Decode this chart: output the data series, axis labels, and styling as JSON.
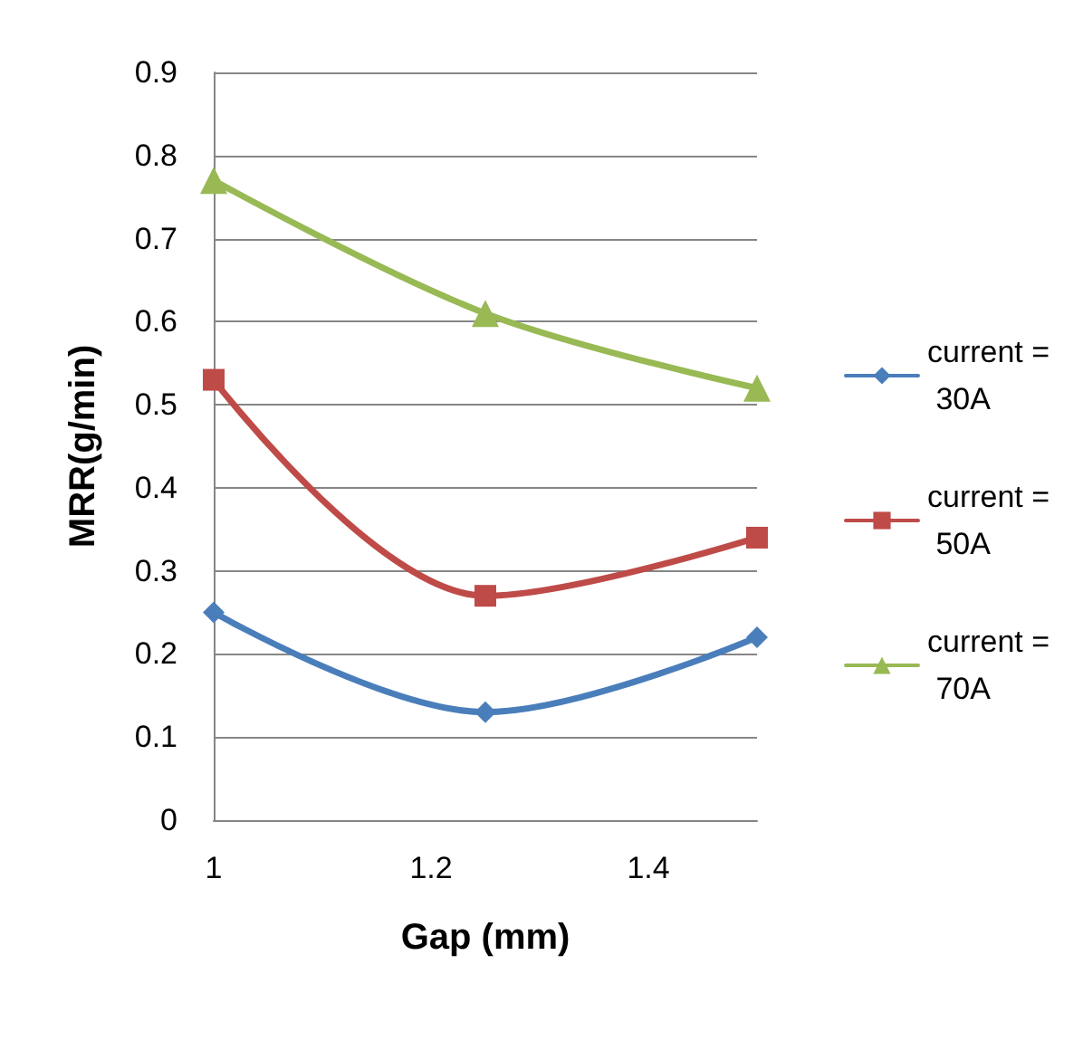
{
  "chart_data": {
    "type": "line",
    "xlabel": "Gap (mm)",
    "ylabel": "MRR(g/min)",
    "x": [
      1,
      1.25,
      1.5
    ],
    "series": [
      {
        "name": "current = 30A",
        "color": "#4a7ebb",
        "marker": "diamond",
        "values": [
          0.25,
          0.13,
          0.22
        ]
      },
      {
        "name": "current = 50A",
        "color": "#be4b48",
        "marker": "square",
        "values": [
          0.53,
          0.27,
          0.34
        ]
      },
      {
        "name": "current = 70A",
        "color": "#98b954",
        "marker": "triangle",
        "values": [
          0.77,
          0.61,
          0.52
        ]
      }
    ],
    "xlim": [
      1,
      1.5
    ],
    "xticks": [
      1,
      1.2,
      1.4
    ],
    "ylim": [
      0,
      0.9
    ],
    "yticks": [
      0,
      0.1,
      0.2,
      0.3,
      0.4,
      0.5,
      0.6,
      0.7,
      0.8,
      0.9
    ],
    "grid": "y",
    "legend": "right",
    "line_style": "solid"
  }
}
